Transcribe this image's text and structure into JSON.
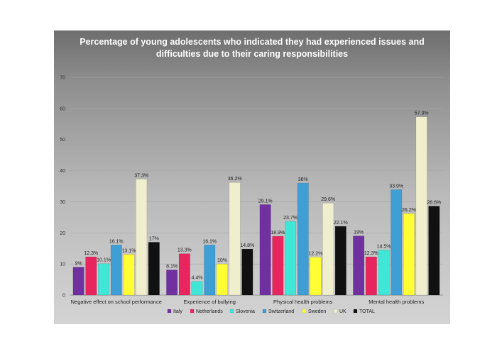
{
  "chart_data": {
    "type": "bar",
    "title_lines": [
      "Percentage of young adolescents who indicated they had experienced issues and",
      "difficulties due to their caring responsibilities"
    ],
    "categories": [
      "Negative effect on school performance",
      "Experience of bullying",
      "Physical health problems",
      "Mental health problems"
    ],
    "ylim": [
      0,
      70
    ],
    "yticks": [
      0,
      10,
      20,
      30,
      40,
      50,
      60,
      70
    ],
    "grid": true,
    "legend_position": "bottom",
    "series": [
      {
        "name": "Italy",
        "color": "#7030a0",
        "values": [
          9,
          8.1,
          29.1,
          19
        ],
        "labels": [
          "9%",
          "8.1%",
          "29.1%",
          "19%"
        ]
      },
      {
        "name": "Netherlands",
        "color": "#e8255e",
        "values": [
          12.3,
          13.3,
          18.9,
          12.3
        ],
        "labels": [
          "12.3%",
          "13.3%",
          "18.9%",
          "12.3%"
        ]
      },
      {
        "name": "Slovenia",
        "color": "#40e6d6",
        "values": [
          10.1,
          4.4,
          23.7,
          14.5
        ],
        "labels": [
          "10.1%",
          "4.4%",
          "23.7%",
          "14.5%"
        ]
      },
      {
        "name": "Switzerland",
        "color": "#3f9ed4",
        "values": [
          16.1,
          16.1,
          36,
          33.9
        ],
        "labels": [
          "16.1%",
          "16.1%",
          "36%",
          "33.9%"
        ]
      },
      {
        "name": "Sweden",
        "color": "#ffff33",
        "values": [
          13.1,
          10,
          12.2,
          26.2
        ],
        "labels": [
          "13.1%",
          "10%",
          "12.2%",
          "26.2%"
        ]
      },
      {
        "name": "UK",
        "color": "#f0efcd",
        "values": [
          37.3,
          36.2,
          29.6,
          57.3
        ],
        "labels": [
          "37.3%",
          "36.2%",
          "29.6%",
          "57.3%"
        ]
      },
      {
        "name": "TOTAL",
        "color": "#111111",
        "values": [
          17,
          14.8,
          22.1,
          28.6
        ],
        "labels": [
          "17%",
          "14.8%",
          "22.1%",
          "28.6%"
        ]
      }
    ]
  }
}
